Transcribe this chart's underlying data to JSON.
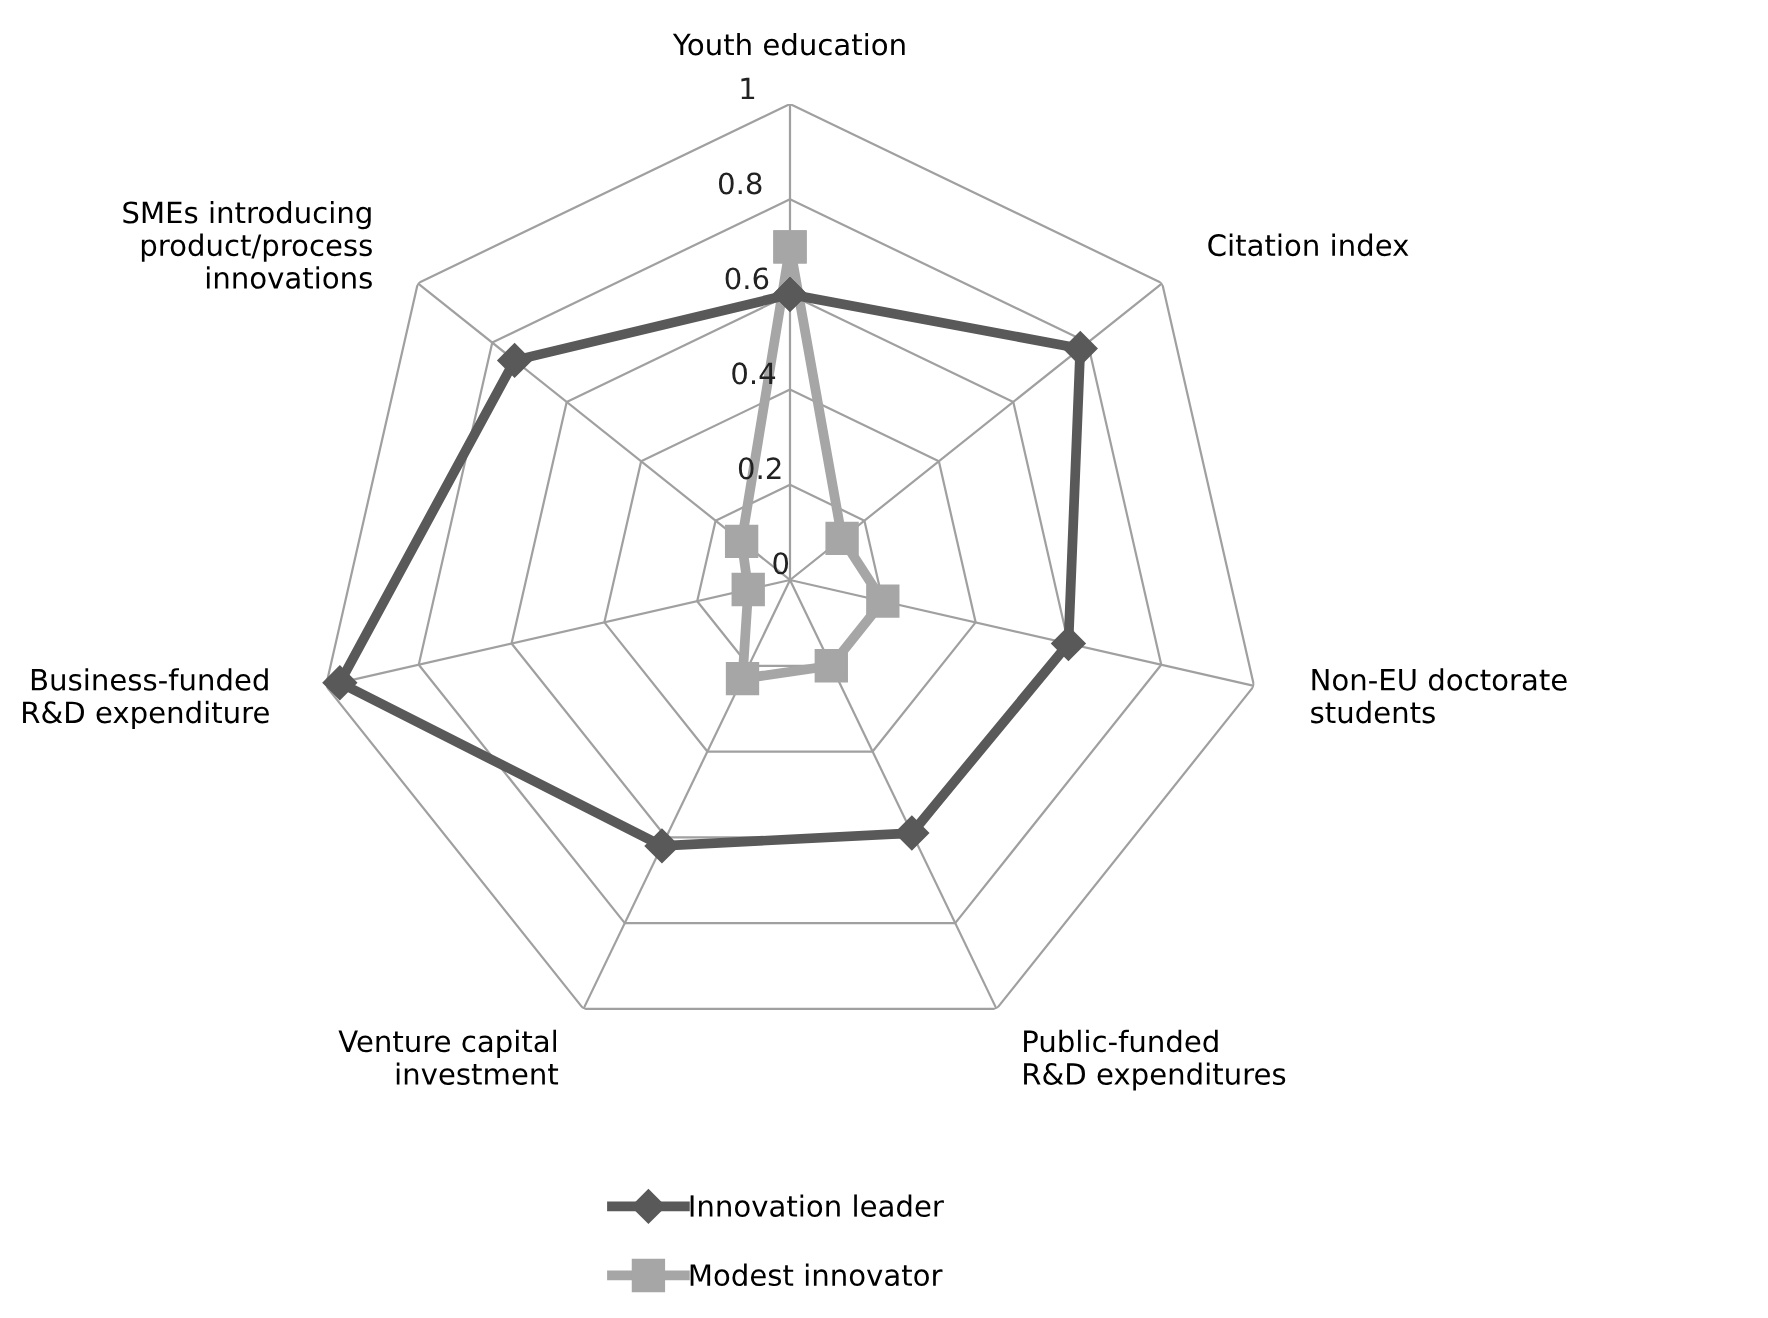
{
  "chart_data": {
    "type": "radar",
    "categories": [
      "Youth education",
      "Citation index",
      "Non-EU doctorate\nstudents",
      "Public-funded\nR&D expenditures",
      "Venture capital\ninvestment",
      "Business-funded\nR&D expenditure",
      "SMEs introducing\nproduct/process\ninnovations"
    ],
    "series": [
      {
        "name": "Innovation leader",
        "color": "#595959",
        "marker": "diamond",
        "values": [
          0.6,
          0.78,
          0.6,
          0.59,
          0.62,
          0.97,
          0.74
        ]
      },
      {
        "name": "Modest innovator",
        "color": "#a6a6a6",
        "marker": "square",
        "values": [
          0.7,
          0.14,
          0.2,
          0.2,
          0.23,
          0.09,
          0.13
        ]
      }
    ],
    "ylim": [
      0,
      1
    ],
    "yticks": [
      0,
      0.2,
      0.4,
      0.6,
      0.8,
      1
    ],
    "grid": true,
    "legend": "bottom"
  }
}
